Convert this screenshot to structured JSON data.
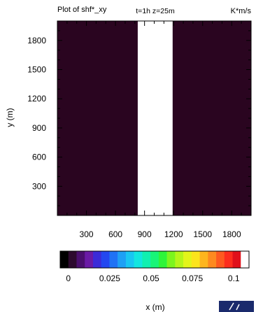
{
  "chart_data": {
    "type": "heatmap",
    "title_left": "Plot of shf*_xy",
    "title_center": "t=1h  z=25m",
    "units": "K*m/s",
    "xlabel": "x (m)",
    "ylabel": "y (m)",
    "xlim": [
      0,
      2000
    ],
    "ylim": [
      0,
      2000
    ],
    "x_ticks": [
      300,
      600,
      900,
      1200,
      1500,
      1800
    ],
    "y_ticks": [
      300,
      600,
      900,
      1200,
      1500,
      1800
    ],
    "x_tick_labels": [
      "300",
      "600",
      "900",
      "1200",
      "1500",
      "1800"
    ],
    "y_tick_labels": [
      "300",
      "600",
      "900",
      "1200",
      "1500",
      "1800"
    ],
    "background_value": 0,
    "regions": [
      {
        "x_range": [
          0,
          830
        ],
        "y_range": [
          0,
          2000
        ],
        "value": 0
      },
      {
        "x_range": [
          830,
          1190
        ],
        "y_range": [
          0,
          2000
        ],
        "value": 0.1
      },
      {
        "x_range": [
          1190,
          2000
        ],
        "y_range": [
          0,
          2000
        ],
        "value": 0
      }
    ],
    "colorbar": {
      "min": 0,
      "max": 0.1,
      "tick_values": [
        0,
        0.025,
        0.05,
        0.075,
        0.1
      ],
      "tick_labels": [
        "0",
        "0.025",
        "0.05",
        "0.075",
        "0.1"
      ],
      "colors": [
        "#000000",
        "#2d0a2e",
        "#4a0f6e",
        "#6a1ba6",
        "#3b2bd8",
        "#2347f0",
        "#1f72f5",
        "#1ea0f5",
        "#19c6f2",
        "#12e6e0",
        "#10f0b0",
        "#19f578",
        "#2ef53a",
        "#7cf51e",
        "#b6f51a",
        "#e3f51a",
        "#fce41c",
        "#fdb51e",
        "#fd8a1f",
        "#fd5a1f",
        "#fc2d1d",
        "#e0101a",
        "#ffffff"
      ]
    }
  }
}
